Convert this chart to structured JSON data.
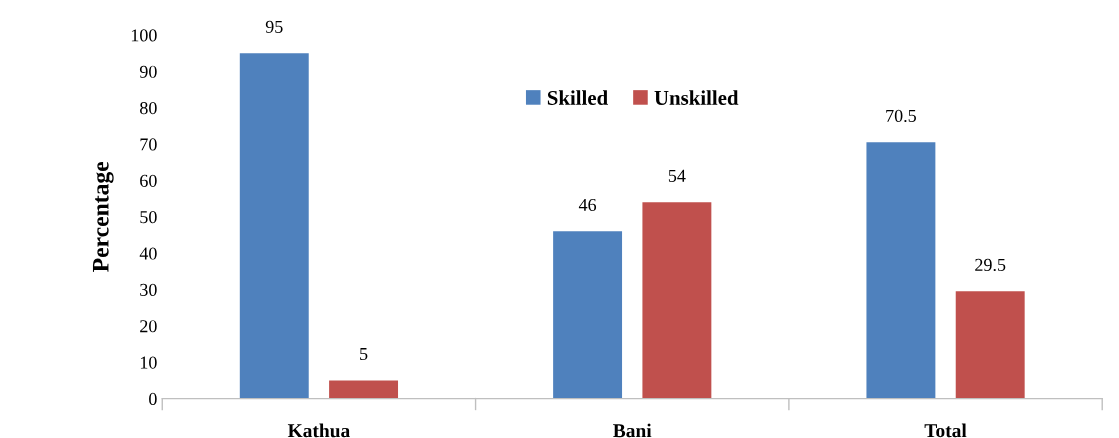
{
  "chart_data": {
    "type": "bar",
    "ylabel": "Percentage",
    "categories": [
      "Kathua",
      "Bani",
      "Total"
    ],
    "series": [
      {
        "name": "Skilled",
        "color": "#4f81bd",
        "values": [
          95,
          46,
          70.5
        ]
      },
      {
        "name": "Unskilled",
        "color": "#c0504d",
        "values": [
          5,
          54,
          29.5
        ]
      }
    ],
    "ylim": [
      0,
      100
    ],
    "yticks": [
      0,
      10,
      20,
      30,
      40,
      50,
      60,
      70,
      80,
      90,
      100
    ],
    "data_labels": true,
    "grid": false,
    "legend": "top"
  }
}
